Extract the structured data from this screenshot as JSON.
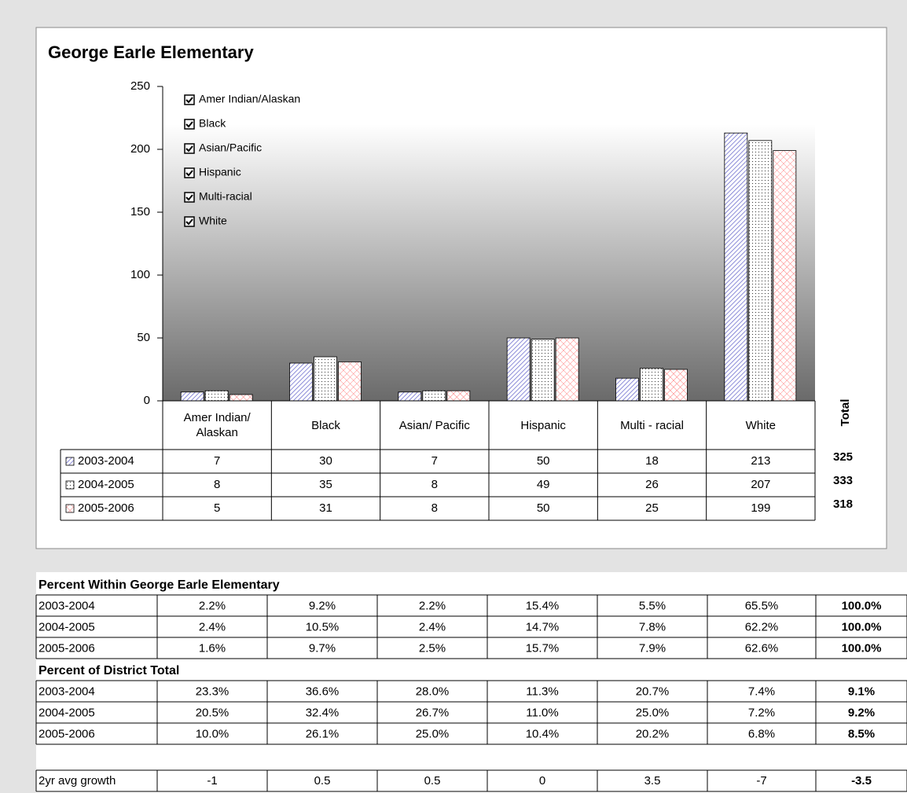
{
  "chart_data": {
    "type": "bar",
    "title": "George Earle Elementary",
    "categories": [
      "Amer Indian/ Alaskan",
      "Black",
      "Asian/ Pacific",
      "Hispanic",
      "Multi - racial",
      "White"
    ],
    "series": [
      {
        "name": "2003-2004",
        "color": "#6666cc",
        "values": [
          7,
          30,
          7,
          50,
          18,
          213
        ]
      },
      {
        "name": "2004-2005",
        "color": "#333333",
        "values": [
          8,
          35,
          8,
          49,
          26,
          207
        ]
      },
      {
        "name": "2005-2006",
        "color": "#ff8080",
        "values": [
          5,
          31,
          8,
          50,
          25,
          199
        ]
      }
    ],
    "ylim": [
      0,
      250
    ],
    "yticks": [
      0,
      50,
      100,
      150,
      200,
      250
    ],
    "filters": [
      "Amer Indian/Alaskan",
      "Black",
      "Asian/Pacific",
      "Hispanic",
      "Multi-racial",
      "White"
    ],
    "total_label": "Total",
    "totals": [
      325,
      333,
      318
    ]
  },
  "tables": [
    {
      "title": "Percent Within George Earle Elementary",
      "rows": [
        [
          "2003-2004",
          "2.2%",
          "9.2%",
          "2.2%",
          "15.4%",
          "5.5%",
          "65.5%",
          "100.0%"
        ],
        [
          "2004-2005",
          "2.4%",
          "10.5%",
          "2.4%",
          "14.7%",
          "7.8%",
          "62.2%",
          "100.0%"
        ],
        [
          "2005-2006",
          "1.6%",
          "9.7%",
          "2.5%",
          "15.7%",
          "7.9%",
          "62.6%",
          "100.0%"
        ]
      ]
    },
    {
      "title": "Percent of District Total",
      "rows": [
        [
          "2003-2004",
          "23.3%",
          "36.6%",
          "28.0%",
          "11.3%",
          "20.7%",
          "7.4%",
          "9.1%"
        ],
        [
          "2004-2005",
          "20.5%",
          "32.4%",
          "26.7%",
          "11.0%",
          "25.0%",
          "7.2%",
          "9.2%"
        ],
        [
          "2005-2006",
          "10.0%",
          "26.1%",
          "25.0%",
          "10.4%",
          "20.2%",
          "6.8%",
          "8.5%"
        ]
      ]
    }
  ],
  "growth": {
    "label": "2yr avg growth",
    "values": [
      -1,
      0.5,
      0.5,
      0,
      3.5,
      -7,
      -3.5
    ]
  }
}
